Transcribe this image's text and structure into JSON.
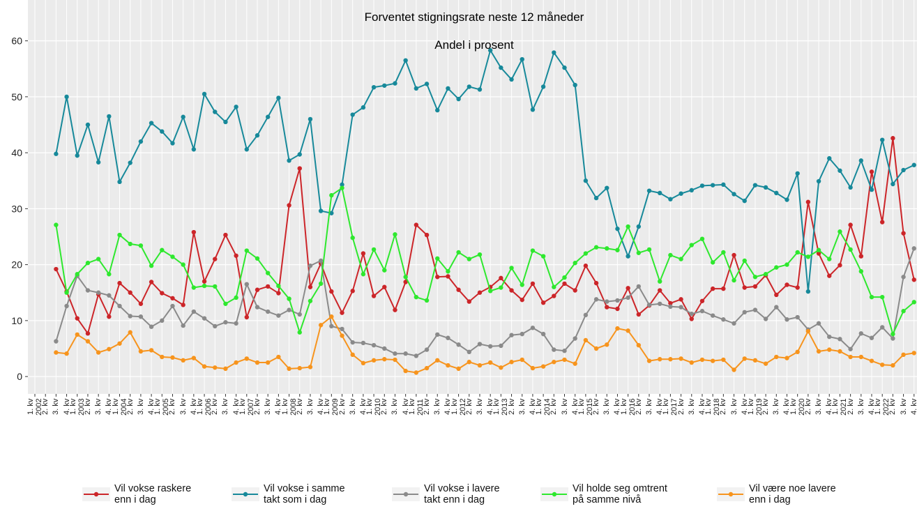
{
  "chart_data": {
    "type": "line",
    "title": "Forventet stigningsrate neste 12 måneder",
    "subtitle": "Andel i prosent",
    "categories": [
      "1. kv\n2002",
      "2. kv",
      "3. kv",
      "4. kv",
      "1. kv\n2003",
      "2. kv",
      "3. kv",
      "4. kv",
      "1. kv\n2004",
      "2. kv",
      "3. kv",
      "4. kv",
      "1. kv\n2005",
      "2. kv",
      "3. kv",
      "4. kv",
      "1. kv\n2006",
      "2. kv",
      "3. kv",
      "4. kv",
      "1. kv\n2007",
      "2. kv",
      "3. kv",
      "4. kv",
      "1. kv\n2008",
      "2. kv",
      "3. kv",
      "4. kv",
      "1. kv\n2009",
      "2. kv",
      "3. kv",
      "4. kv",
      "1. kv\n2010",
      "2. kv",
      "3. kv",
      "4. kv",
      "1. kv\n2011",
      "2. kv",
      "3. kv",
      "4. kv",
      "1. kv\n2012",
      "2. kv",
      "3. kv",
      "4. kv",
      "1. kv\n2013",
      "2. kv",
      "3. kv",
      "4. kv",
      "1. kv\n2014",
      "2. kv",
      "3. kv",
      "4. kv",
      "1. kv\n2015",
      "2. kv",
      "3. kv",
      "4. kv",
      "1. kv\n2016",
      "2. kv",
      "3. kv",
      "4. kv",
      "1. kv\n2017",
      "2. kv",
      "3. kv",
      "4. kv",
      "1. kv\n2018",
      "2. kv",
      "3. kv",
      "4. kv",
      "1. kv\n2019",
      "2. kv",
      "3. kv",
      "4. kv",
      "1. kv\n2020",
      "2. kv",
      "3. kv",
      "4. kv",
      "1. kv\n2021",
      "2. kv",
      "3. kv",
      "4. kv",
      "1. kv\n2022",
      "2. kv",
      "3. kv",
      "4. kv"
    ],
    "series": [
      {
        "name": "Vil vokse raskere\nenn i dag",
        "color": "#cc2529",
        "values": [
          null,
          null,
          19.2,
          15.2,
          10.4,
          7.7,
          14.7,
          10.7,
          16.7,
          15,
          13,
          16.9,
          14.9,
          14,
          12.8,
          25.8,
          17,
          21,
          25.3,
          21.6,
          10.6,
          15.5,
          16.1,
          14.9,
          30.6,
          37.2,
          16,
          20.2,
          15.2,
          11.4,
          15.3,
          22,
          14.4,
          16,
          11.9,
          16.9,
          27.1,
          25.3,
          17.8,
          17.9,
          15.5,
          13.4,
          15,
          16,
          17.6,
          15.4,
          13.7,
          16.6,
          13.2,
          14.4,
          16.6,
          15.4,
          19.8,
          16.7,
          12.4,
          12.1,
          15.8,
          11.1,
          12.7,
          15.4,
          13.1,
          13.8,
          10.3,
          13.5,
          15.7,
          15.7,
          21.7,
          15.9,
          16.1,
          18.1,
          14.6,
          16.4,
          15.9,
          31.2,
          22,
          18,
          19.9,
          27.1,
          21.5,
          36.6,
          27.6,
          42.6,
          25.6,
          17.3
        ]
      },
      {
        "name": "Vil vokse i samme\ntakt som i dag",
        "color": "#17899a",
        "values": [
          null,
          null,
          39.8,
          50,
          39.5,
          45,
          38.3,
          46.5,
          34.8,
          38.2,
          42,
          45.3,
          43.8,
          41.7,
          46.4,
          40.6,
          50.5,
          47.3,
          45.5,
          48.2,
          40.6,
          43.1,
          46.4,
          49.8,
          38.6,
          39.7,
          46,
          29.6,
          29.2,
          34.3,
          46.8,
          48.1,
          51.7,
          52,
          52.4,
          56.5,
          51.5,
          52.3,
          47.6,
          51.5,
          49.6,
          51.8,
          51.3,
          58.3,
          55.2,
          53.1,
          56.7,
          47.7,
          51.8,
          57.9,
          55.2,
          52.1,
          35,
          31.9,
          33.7,
          26.4,
          21.5,
          26.8,
          33.2,
          32.8,
          31.7,
          32.7,
          33.3,
          34.1,
          34.2,
          34.3,
          32.6,
          31.4,
          34.2,
          33.8,
          32.8,
          31.6,
          36.3,
          15.2,
          34.9,
          39,
          36.8,
          33.8,
          38.6,
          33.4,
          42.3,
          34.4,
          36.9,
          37.8
        ]
      },
      {
        "name": "Vil vokse i lavere\ntakt enn i dag",
        "color": "#8a8a8a",
        "values": [
          null,
          null,
          6.3,
          12.6,
          18,
          15.4,
          15,
          14.5,
          12.6,
          10.8,
          10.7,
          8.9,
          10,
          12.6,
          9.1,
          11.6,
          10.4,
          9,
          9.7,
          9.5,
          16.5,
          12.4,
          11.6,
          10.9,
          11.9,
          11.1,
          19.8,
          20.7,
          9,
          8.5,
          6.1,
          6,
          5.6,
          5,
          4.1,
          4.1,
          3.7,
          4.8,
          7.5,
          6.9,
          5.7,
          4.4,
          5.8,
          5.4,
          5.5,
          7.4,
          7.6,
          8.7,
          7.6,
          4.8,
          4.6,
          6.8,
          11,
          13.8,
          13.4,
          13.6,
          14.1,
          16.1,
          12.8,
          13,
          12.5,
          12.4,
          11.2,
          11.7,
          10.9,
          10.2,
          9.5,
          11.5,
          11.9,
          10.3,
          12.4,
          10.2,
          10.6,
          8.4,
          9.5,
          7.1,
          6.7,
          4.9,
          7.7,
          6.9,
          8.8,
          6.8,
          17.8,
          22.9
        ]
      },
      {
        "name": "Vil holde seg omtrent\npå samme nivå",
        "color": "#2ee82e",
        "values": [
          null,
          null,
          27.1,
          15,
          18.3,
          20.3,
          21,
          18.3,
          25.3,
          23.7,
          23.4,
          19.8,
          22.6,
          21.4,
          20,
          15.9,
          16.2,
          16.1,
          13,
          14.1,
          22.5,
          21.1,
          18.5,
          16.2,
          13.9,
          7.9,
          13.5,
          16.6,
          32.4,
          33.7,
          24.8,
          18.3,
          22.7,
          19,
          25.4,
          17.8,
          14.2,
          13.6,
          21.1,
          18.8,
          22.2,
          21,
          21.8,
          15.3,
          15.9,
          19.4,
          16.4,
          22.5,
          21.5,
          16,
          17.7,
          20.3,
          22,
          23.1,
          22.9,
          22.6,
          26.8,
          22.1,
          22.7,
          17,
          21.7,
          21,
          23.5,
          24.6,
          20.4,
          22.2,
          17.2,
          20.7,
          17.8,
          18.3,
          19.5,
          20,
          22.2,
          21.4,
          22.6,
          21,
          25.9,
          22.7,
          18.8,
          14.2,
          14.2,
          7.6,
          11.7,
          13.3
        ]
      },
      {
        "name": "Vil være noe lavere\nenn i dag",
        "color": "#f7941d",
        "values": [
          null,
          null,
          4.3,
          4.1,
          7.5,
          6.3,
          4.3,
          4.9,
          5.9,
          7.9,
          4.5,
          4.7,
          3.5,
          3.4,
          2.9,
          3.3,
          1.8,
          1.6,
          1.4,
          2.5,
          3.2,
          2.5,
          2.5,
          3.5,
          1.4,
          1.5,
          1.7,
          9.2,
          10.7,
          7.3,
          3.9,
          2.4,
          2.9,
          3.1,
          3,
          1,
          0.7,
          1.5,
          2.9,
          2,
          1.4,
          2.6,
          2,
          2.5,
          1.6,
          2.6,
          3,
          1.5,
          1.8,
          2.6,
          3,
          2.3,
          6.5,
          5,
          5.7,
          8.6,
          8.2,
          5.6,
          2.8,
          3.1,
          3.1,
          3.2,
          2.5,
          3,
          2.8,
          3,
          1.2,
          3.2,
          2.9,
          2.3,
          3.5,
          3.3,
          4.4,
          8.1,
          4.5,
          4.8,
          4.5,
          3.5,
          3.5,
          2.8,
          2.1,
          2,
          3.9,
          4.2
        ]
      }
    ],
    "ylim": [
      -3.1,
      67.3
    ],
    "yticks": [
      0,
      10,
      20,
      30,
      40,
      50,
      60
    ],
    "grid": true,
    "legend": "bottom"
  }
}
